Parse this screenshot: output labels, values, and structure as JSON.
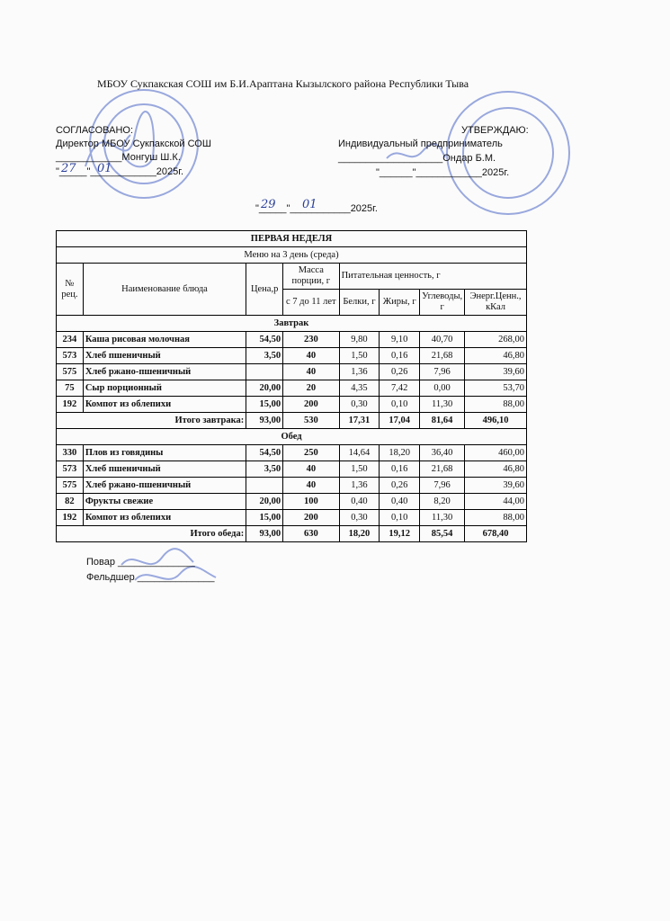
{
  "header": {
    "organization": "МБОУ Сукпакская СОШ им Б.И.Араптана Кызылского района Республики Тыва"
  },
  "approval_left": {
    "title": "СОГЛАСОВАНО:",
    "position": "Директор МБОУ Сукпакской СОШ",
    "signature_line": "____________Монгуш Ш.К.",
    "date_line": "\"_____\"____________2025г.",
    "handwritten_day": "27",
    "handwritten_month": "01"
  },
  "approval_right": {
    "title": "УТВЕРЖДАЮ:",
    "position": "Индивидуальный предприниматель",
    "signature_line": "___________________Ондар Б.М.",
    "date_line": "\"______\"____________2025г."
  },
  "menu_date": {
    "date_line": "\"_____\"___________2025г.",
    "handwritten_day": "29",
    "handwritten_month": "01"
  },
  "table": {
    "title": "ПЕРВАЯ НЕДЕЛЯ",
    "subtitle": "Меню на 3 день (среда)",
    "headers": {
      "code": "№ рец.",
      "name": "Наименование блюда",
      "price": "Цена,р",
      "mass": "Масса порции, г",
      "age": "с 7 до 11 лет",
      "nutrition": "Питательная ценность, г",
      "protein": "Белки, г",
      "fat": "Жиры, г",
      "carbs": "Углеводы, г",
      "energy": "Энерг.Ценн., кКал"
    },
    "sections": [
      {
        "title": "Завтрак",
        "rows": [
          [
            "234",
            "Каша рисовая молочная",
            "54,50",
            "230",
            "9,80",
            "9,10",
            "40,70",
            "268,00"
          ],
          [
            "573",
            "Хлеб пшеничный",
            "3,50",
            "40",
            "1,50",
            "0,16",
            "21,68",
            "46,80"
          ],
          [
            "575",
            "Хлеб ржано-пшеничный",
            null,
            "40",
            "1,36",
            "0,26",
            "7,96",
            "39,60"
          ],
          [
            "75",
            "Сыр порционный",
            "20,00",
            "20",
            "4,35",
            "7,42",
            "0,00",
            "53,70"
          ],
          [
            "192",
            "Компот из облепихи",
            "15,00",
            "200",
            "0,30",
            "0,10",
            "11,30",
            "88,00"
          ]
        ],
        "total": [
          "Итого завтрака:",
          "93,00",
          "530",
          "17,31",
          "17,04",
          "81,64",
          "496,10"
        ]
      },
      {
        "title": "Обед",
        "rows": [
          [
            "330",
            "Плов из говядины",
            "54,50",
            "250",
            "14,64",
            "18,20",
            "36,40",
            "460,00"
          ],
          [
            "573",
            "Хлеб пшеничный",
            "3,50",
            "40",
            "1,50",
            "0,16",
            "21,68",
            "46,80"
          ],
          [
            "575",
            "Хлеб ржано-пшеничный",
            null,
            "40",
            "1,36",
            "0,26",
            "7,96",
            "39,60"
          ],
          [
            "82",
            "Фрукты свежие",
            "20,00",
            "100",
            "0,40",
            "0,40",
            "8,20",
            "44,00"
          ],
          [
            "192",
            "Компот из облепихи",
            "15,00",
            "200",
            "0,30",
            "0,10",
            "11,30",
            "88,00"
          ]
        ],
        "total": [
          "Итого обеда:",
          "93,00",
          "630",
          "18,20",
          "19,12",
          "85,54",
          "678,40"
        ]
      }
    ]
  },
  "footer": {
    "cook": "Повар ______________",
    "medic": "Фельдшер ______________"
  }
}
